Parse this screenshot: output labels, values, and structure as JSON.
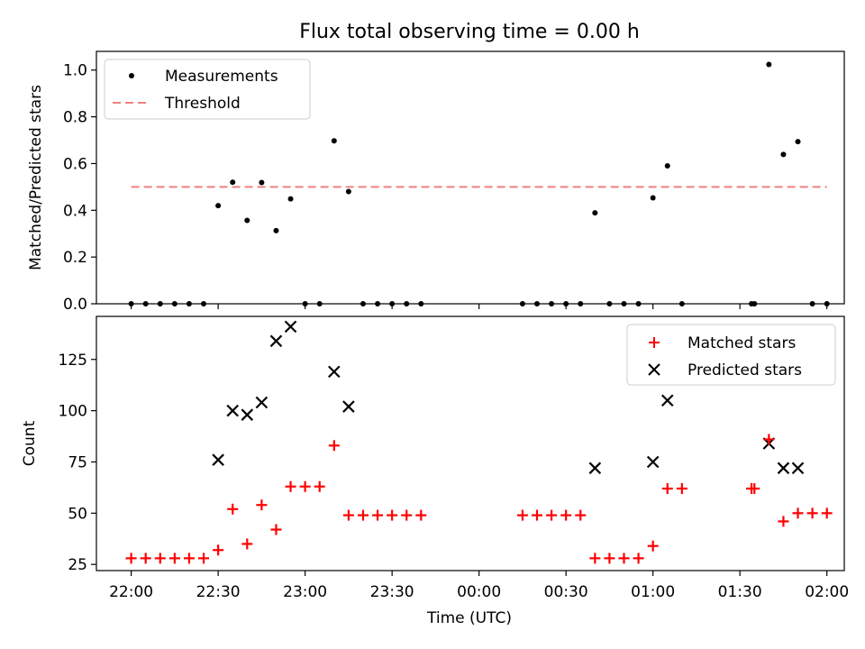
{
  "title": "Flux total observing time = 0.00 h",
  "colors": {
    "measurement": "#000000",
    "threshold": "#f08080",
    "matched": "#ff0000",
    "predicted": "#000000"
  },
  "chart_data": [
    {
      "type": "scatter",
      "ylabel": "Matched/Predicted stars",
      "ylim": [
        0,
        1.08
      ],
      "yticks": [
        0.0,
        0.2,
        0.4,
        0.6,
        0.8,
        1.0
      ],
      "ytick_labels": [
        "0.0",
        "0.2",
        "0.4",
        "0.6",
        "0.8",
        "1.0"
      ],
      "legend": {
        "placement": "upper-left",
        "entries": [
          "Measurements",
          "Threshold"
        ]
      },
      "series": [
        {
          "name": "Measurements",
          "points": [
            [
              "22:00",
              0.0
            ],
            [
              "22:05",
              0.0
            ],
            [
              "22:10",
              0.0
            ],
            [
              "22:15",
              0.0
            ],
            [
              "22:20",
              0.0
            ],
            [
              "22:25",
              0.0
            ],
            [
              "22:30",
              0.42
            ],
            [
              "22:35",
              0.52
            ],
            [
              "22:40",
              0.357
            ],
            [
              "22:45",
              0.519
            ],
            [
              "22:50",
              0.313
            ],
            [
              "22:55",
              0.449
            ],
            [
              "23:00",
              0.0
            ],
            [
              "23:05",
              0.0
            ],
            [
              "23:10",
              0.697
            ],
            [
              "23:15",
              0.48
            ],
            [
              "23:20",
              0.0
            ],
            [
              "23:25",
              0.0
            ],
            [
              "23:30",
              0.0
            ],
            [
              "23:35",
              0.0
            ],
            [
              "23:40",
              0.0
            ],
            [
              "00:15",
              0.0
            ],
            [
              "00:20",
              0.0
            ],
            [
              "00:25",
              0.0
            ],
            [
              "00:30",
              0.0
            ],
            [
              "00:35",
              0.0
            ],
            [
              "00:40",
              0.389
            ],
            [
              "00:45",
              0.0
            ],
            [
              "00:50",
              0.0
            ],
            [
              "00:55",
              0.0
            ],
            [
              "01:00",
              0.453
            ],
            [
              "01:05",
              0.59
            ],
            [
              "01:10",
              0.0
            ],
            [
              "01:34",
              0.0
            ],
            [
              "01:35",
              0.0
            ],
            [
              "01:40",
              1.024
            ],
            [
              "01:45",
              0.639
            ],
            [
              "01:50",
              0.694
            ],
            [
              "01:55",
              0.0
            ],
            [
              "02:00",
              0.0
            ]
          ]
        },
        {
          "name": "Threshold",
          "x": [
            "22:00",
            "02:00"
          ],
          "y": [
            0.5,
            0.5
          ]
        }
      ]
    },
    {
      "type": "scatter",
      "xlabel": "Time (UTC)",
      "ylabel": "Count",
      "ylim": [
        22,
        146
      ],
      "yticks": [
        25,
        50,
        75,
        100,
        125
      ],
      "ytick_labels": [
        "25",
        "50",
        "75",
        "100",
        "125"
      ],
      "xlim": [
        "21:48",
        "02:06"
      ],
      "xticks": [
        "22:00",
        "22:30",
        "23:00",
        "23:30",
        "00:00",
        "00:30",
        "01:00",
        "01:30",
        "02:00"
      ],
      "xtick_labels": [
        "22:00",
        "22:30",
        "23:00",
        "23:30",
        "00:00",
        "00:30",
        "01:00",
        "01:30",
        "02:00"
      ],
      "legend": {
        "placement": "upper-right",
        "entries": [
          "Matched stars",
          "Predicted stars"
        ]
      },
      "series": [
        {
          "name": "Matched stars",
          "points": [
            [
              "22:00",
              28
            ],
            [
              "22:05",
              28
            ],
            [
              "22:10",
              28
            ],
            [
              "22:15",
              28
            ],
            [
              "22:20",
              28
            ],
            [
              "22:25",
              28
            ],
            [
              "22:30",
              32
            ],
            [
              "22:35",
              52
            ],
            [
              "22:40",
              35
            ],
            [
              "22:45",
              54
            ],
            [
              "22:50",
              42
            ],
            [
              "22:55",
              63
            ],
            [
              "23:00",
              63
            ],
            [
              "23:05",
              63
            ],
            [
              "23:10",
              83
            ],
            [
              "23:15",
              49
            ],
            [
              "23:20",
              49
            ],
            [
              "23:25",
              49
            ],
            [
              "23:30",
              49
            ],
            [
              "23:35",
              49
            ],
            [
              "23:40",
              49
            ],
            [
              "00:15",
              49
            ],
            [
              "00:20",
              49
            ],
            [
              "00:25",
              49
            ],
            [
              "00:30",
              49
            ],
            [
              "00:35",
              49
            ],
            [
              "00:40",
              28
            ],
            [
              "00:45",
              28
            ],
            [
              "00:50",
              28
            ],
            [
              "00:55",
              28
            ],
            [
              "01:00",
              34
            ],
            [
              "01:05",
              62
            ],
            [
              "01:10",
              62
            ],
            [
              "01:34",
              62
            ],
            [
              "01:35",
              62
            ],
            [
              "01:40",
              86
            ],
            [
              "01:45",
              46
            ],
            [
              "01:50",
              50
            ],
            [
              "01:55",
              50
            ],
            [
              "02:00",
              50
            ]
          ]
        },
        {
          "name": "Predicted stars",
          "points": [
            [
              "22:30",
              76
            ],
            [
              "22:35",
              100
            ],
            [
              "22:40",
              98
            ],
            [
              "22:45",
              104
            ],
            [
              "22:50",
              134
            ],
            [
              "22:55",
              141
            ],
            [
              "23:10",
              119
            ],
            [
              "23:15",
              102
            ],
            [
              "00:40",
              72
            ],
            [
              "01:00",
              75
            ],
            [
              "01:05",
              105
            ],
            [
              "01:40",
              84
            ],
            [
              "01:45",
              72
            ],
            [
              "01:50",
              72
            ]
          ]
        }
      ]
    }
  ]
}
